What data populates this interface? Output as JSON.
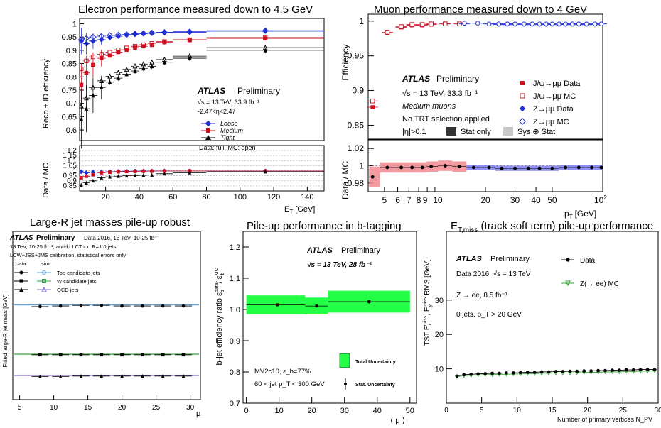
{
  "panels": {
    "electron": {
      "title": "Electron performance measured down to 4.5 GeV",
      "ylabel": "Reco + ID efficiency",
      "ratio_ylabel": "Data / MC",
      "xlabel": "E",
      "xlabel_sub": "T",
      "xlabel_unit": "[GeV]",
      "atlas": "ATLAS",
      "preliminary": "Preliminary",
      "info": [
        "√s = 13 TeV, 33.9 fb⁻¹",
        "-2.47<η<2.47"
      ],
      "data_note": "Data: full, MC: open",
      "legend": [
        "Loose",
        "Medium",
        "Tight"
      ]
    },
    "muon": {
      "title": "Muon performance measured down to 4 GeV",
      "ylabel": "Efficiency",
      "ratio_ylabel": "Data / MC",
      "xlabel": "p",
      "xlabel_sub": "T",
      "xlabel_unit": "[GeV]",
      "atlas": "ATLAS",
      "preliminary": "Preliminary",
      "info": [
        "√s = 13 TeV, 33.3 fb⁻¹",
        "Medium muons",
        "No TRT selection applied",
        "|η|>0.1"
      ],
      "stat_only": "Stat only",
      "sys_stat": "Sys ⊕ Stat",
      "legend": [
        "J/ψ→μμ Data",
        "J/ψ→μμ MC",
        "Z→μμ Data",
        "Z→μμ MC"
      ]
    },
    "jetmass": {
      "title": "Large-R jet masses pile-up robust",
      "ylabel": "Fitted large-R jet mass [GeV]",
      "xlabel": "μ",
      "atlas": "ATLAS",
      "preliminary": "Preliminary",
      "info_right": "Data 2016, 13 TeV, 10-25 fb⁻¹",
      "info": [
        "13 TeV, 10-25 fb⁻¹, anti-kt LCTopo R=1.0 jets",
        "LCW+JES+JMS calibration, statistical errors only"
      ],
      "col_data": "data",
      "col_sim": "sim.",
      "legend": [
        "Top candidate jets",
        "W candidate jets",
        "QCD jets"
      ]
    },
    "btag": {
      "title": "Pile-up performance in b-tagging",
      "ylabel": "b-jet efficiency ratio ε_b^data / ε_b^MC",
      "xlabel": "⟨ μ ⟩",
      "atlas": "ATLAS",
      "preliminary": "Preliminary",
      "info": "√s = 13 TeV, 28 fb⁻¹",
      "tagger": "MV2c10, ε_b=77%",
      "cut": "60 < jet p_T < 300 GeV",
      "legend": [
        "Total Uncertainty",
        "Stat. Uncertainty"
      ]
    },
    "met": {
      "title": "E_T,miss (track soft term) pile-up performance",
      "ylabel": "TST E_x^miss, E_y^miss RMS [GeV]",
      "xlabel": "Number of primary vertices N_PV",
      "atlas": "ATLAS",
      "preliminary": "Preliminary",
      "info": [
        "Data 2016, √s = 13 TeV",
        "Z → ee,  8.5 fb⁻¹",
        "0 jets, p_T > 20 GeV"
      ],
      "legend": [
        "Data",
        "Z(→ ee) MC"
      ]
    }
  },
  "chart_data": [
    {
      "type": "scatter",
      "title": "Electron performance measured down to 4.5 GeV",
      "xlabel": "E_T [GeV]",
      "ylabel": "Reco + ID efficiency",
      "xlim": [
        4.5,
        150
      ],
      "ylim": [
        0.56,
        1.02
      ],
      "xticks": [
        20,
        40,
        60,
        80,
        100,
        120,
        140
      ],
      "yticks": [
        0.6,
        0.65,
        0.7,
        0.75,
        0.8,
        0.85,
        0.9,
        0.95,
        1
      ],
      "x": [
        5.5,
        8.5,
        12.5,
        17.5,
        22.5,
        27.5,
        32.5,
        37.5,
        42.5,
        47.5,
        55,
        70,
        115
      ],
      "xerr": [
        1,
        2,
        2.5,
        2.5,
        2.5,
        2.5,
        2.5,
        2.5,
        2.5,
        2.5,
        5,
        10,
        35
      ],
      "series": [
        {
          "name": "Loose",
          "color": "#1f2fd0",
          "marker": "diamond",
          "data": [
            0.935,
            0.925,
            0.935,
            0.94,
            0.948,
            0.953,
            0.957,
            0.96,
            0.962,
            0.964,
            0.966,
            0.968,
            0.972
          ],
          "mc": [
            0.94,
            0.945,
            0.95,
            0.953,
            0.956,
            0.958,
            0.96,
            0.962,
            0.964,
            0.966,
            0.968,
            0.97,
            0.974
          ]
        },
        {
          "name": "Medium",
          "color": "#cc1020",
          "marker": "square",
          "data": [
            0.77,
            0.815,
            0.845,
            0.87,
            0.88,
            0.893,
            0.902,
            0.91,
            0.915,
            0.92,
            0.93,
            0.938,
            0.945
          ],
          "mc": [
            0.83,
            0.86,
            0.875,
            0.885,
            0.893,
            0.902,
            0.909,
            0.915,
            0.921,
            0.926,
            0.933,
            0.94,
            0.948
          ]
        },
        {
          "name": "Tight",
          "color": "#000000",
          "marker": "triangle",
          "data": [
            0.64,
            0.68,
            0.73,
            0.76,
            0.78,
            0.795,
            0.81,
            0.822,
            0.832,
            0.84,
            0.855,
            0.87,
            0.9
          ],
          "mc": [
            0.69,
            0.72,
            0.76,
            0.785,
            0.802,
            0.816,
            0.828,
            0.84,
            0.848,
            0.855,
            0.865,
            0.878,
            0.91
          ]
        }
      ],
      "ratio": {
        "ylim": [
          0.8,
          1.25
        ],
        "yticks": [
          0.85,
          0.9,
          0.95,
          1,
          1.05,
          1.1,
          1.15,
          1.2
        ],
        "series": [
          {
            "name": "Loose",
            "values": [
              0.99,
              0.98,
              0.985,
              0.986,
              0.99,
              0.993,
              0.995,
              0.996,
              0.997,
              0.997,
              0.998,
              0.998,
              0.998
            ]
          },
          {
            "name": "Medium",
            "values": [
              0.93,
              0.945,
              0.96,
              0.98,
              0.985,
              0.99,
              0.992,
              0.994,
              0.995,
              0.996,
              0.997,
              0.998,
              0.997
            ]
          },
          {
            "name": "Tight",
            "values": [
              0.86,
              0.88,
              0.9,
              0.93,
              0.94,
              0.946,
              0.95,
              0.953,
              0.955,
              0.958,
              0.97,
              0.98,
              0.99
            ]
          }
        ]
      }
    },
    {
      "type": "scatter",
      "title": "Muon performance measured down to 4 GeV",
      "xlabel": "p_T [GeV]",
      "ylabel": "Efficiency",
      "xscale": "log",
      "xlim": [
        4,
        100
      ],
      "ylim": [
        0.83,
        1.01
      ],
      "xticks": [
        5,
        6,
        7,
        8,
        9,
        10,
        20,
        30,
        40,
        50,
        100
      ],
      "yticks": [
        0.85,
        0.9,
        0.95,
        1
      ],
      "series": [
        {
          "name": "J/ψ→μμ Data",
          "color": "#cc1020",
          "marker": "square-filled",
          "x": [
            4.25,
            5.2,
            6.3,
            7.3,
            8.4,
            9.5,
            11.5,
            14
          ],
          "y": [
            0.876,
            0.983,
            0.991,
            0.994,
            0.994,
            0.995,
            0.996,
            0.996
          ]
        },
        {
          "name": "J/ψ→μμ MC",
          "color": "#cc1020",
          "marker": "square-open",
          "x": [
            4.25,
            5.2,
            6.3,
            7.3,
            8.4,
            9.5,
            11.5,
            14
          ],
          "y": [
            0.885,
            0.984,
            0.992,
            0.995,
            0.995,
            0.996,
            0.996,
            0.996
          ]
        },
        {
          "name": "Z→μμ Data",
          "color": "#1f2fd0",
          "marker": "circle-filled",
          "x": [
            15,
            18,
            21,
            24,
            27,
            30,
            34,
            38,
            42,
            46,
            50,
            55,
            60,
            66,
            72,
            80,
            90,
            98
          ],
          "y": [
            0.996,
            0.997,
            0.996,
            0.995,
            0.995,
            0.995,
            0.995,
            0.995,
            0.995,
            0.995,
            0.995,
            0.995,
            0.995,
            0.995,
            0.995,
            0.995,
            0.995,
            0.996
          ]
        },
        {
          "name": "Z→μμ MC",
          "color": "#1f2fd0",
          "marker": "circle-open",
          "x": [
            15,
            18,
            21,
            24,
            27,
            30,
            34,
            38,
            42,
            46,
            50,
            55,
            60,
            66,
            72,
            80,
            90,
            98
          ],
          "y": [
            0.997,
            0.997,
            0.996,
            0.996,
            0.996,
            0.996,
            0.996,
            0.996,
            0.996,
            0.996,
            0.996,
            0.996,
            0.996,
            0.996,
            0.996,
            0.996,
            0.996,
            0.996
          ]
        }
      ],
      "ratio": {
        "ylim": [
          0.97,
          1.03
        ],
        "yticks": [
          0.98,
          1,
          1.02
        ],
        "x": [
          4.25,
          5.2,
          6.3,
          7.3,
          8.4,
          9.5,
          11.5,
          14,
          17,
          21,
          25,
          30,
          36,
          42,
          50,
          60,
          72,
          86,
          98
        ],
        "values": [
          0.987,
          0.998,
          0.998,
          0.998,
          0.998,
          0.999,
          1.0,
          0.999,
          0.998,
          0.998,
          0.997,
          0.997,
          0.997,
          0.997,
          0.997,
          0.998,
          0.998,
          0.998,
          0.998
        ]
      }
    },
    {
      "type": "scatter",
      "title": "Large-R jet masses pile-up robust",
      "xlabel": "μ",
      "ylabel": "Fitted large-R jet mass [GeV]",
      "xlim": [
        4,
        31.5
      ],
      "ylim": [
        0,
        300
      ],
      "xticks": [
        5,
        10,
        15,
        20,
        25,
        30
      ],
      "x": [
        8,
        11,
        14,
        17,
        20,
        23,
        26,
        29
      ],
      "series": [
        {
          "name": "Top candidate jets",
          "data": [
            166,
            167,
            168,
            168,
            167,
            167,
            167,
            167
          ],
          "mc": 169
        },
        {
          "name": "W candidate jets",
          "data": [
            80,
            80,
            80,
            80,
            80,
            80,
            80,
            80
          ],
          "mc": 81
        },
        {
          "name": "QCD jets",
          "data": [
            41,
            41,
            42,
            42,
            42,
            42,
            42,
            42
          ],
          "mc": 43
        }
      ]
    },
    {
      "type": "scatter",
      "title": "Pile-up performance in b-tagging",
      "xlabel": "⟨ μ ⟩",
      "ylabel": "b-jet efficiency ratio ε_b^data / ε_b^MC",
      "xlim": [
        -1,
        52
      ],
      "ylim": [
        0.7,
        1.25
      ],
      "xticks": [
        0,
        10,
        20,
        30,
        40,
        50
      ],
      "yticks": [
        0.7,
        0.8,
        0.9,
        1,
        1.1,
        1.2
      ],
      "bins": [
        [
          0,
          18
        ],
        [
          18,
          25
        ],
        [
          25,
          50
        ]
      ],
      "values": [
        1.015,
        1.011,
        1.025
      ],
      "marker_x": [
        9.5,
        21.5,
        37.5
      ],
      "stat_err": [
        0.002,
        0.003,
        0.006
      ],
      "total_err": [
        0.03,
        0.027,
        0.035
      ]
    },
    {
      "type": "scatter",
      "title": "E_T,miss (track soft term) pile-up performance",
      "xlabel": "Number of primary vertices N_PV",
      "ylabel": "TST E_x^miss, E_y^miss RMS [GeV]",
      "xlim": [
        0,
        30
      ],
      "ylim": [
        0,
        50
      ],
      "xticks": [
        0,
        5,
        10,
        15,
        20,
        25,
        30
      ],
      "yticks": [
        10,
        20,
        30
      ],
      "x": [
        1.5,
        2.5,
        3.5,
        4.5,
        5.5,
        6.5,
        7.5,
        8.5,
        9.5,
        10.5,
        11.5,
        12.5,
        13.5,
        14.5,
        15.5,
        16.5,
        17.5,
        18.5,
        19.5,
        20.5,
        21.5,
        22.5,
        23.5,
        24.5,
        25.5,
        26.5,
        27.5,
        28.5,
        29.5
      ],
      "series": [
        {
          "name": "Data",
          "values": [
            7.9,
            8.3,
            8.4,
            8.5,
            8.6,
            8.7,
            8.7,
            8.8,
            8.8,
            8.9,
            9.0,
            9.0,
            9.1,
            9.1,
            9.2,
            9.2,
            9.3,
            9.3,
            9.4,
            9.4,
            9.5,
            9.5,
            9.6,
            9.6,
            9.7,
            9.7,
            9.8,
            9.8,
            9.8
          ]
        },
        {
          "name": "Z(→ ee) MC",
          "values": [
            7.7,
            8.0,
            8.1,
            8.2,
            8.3,
            8.3,
            8.4,
            8.4,
            8.5,
            8.5,
            8.6,
            8.6,
            8.7,
            8.7,
            8.8,
            8.8,
            8.8,
            8.9,
            8.9,
            9.0,
            9.0,
            9.1,
            9.1,
            9.1,
            9.2,
            9.2,
            9.3,
            9.3,
            9.4
          ]
        }
      ]
    }
  ]
}
